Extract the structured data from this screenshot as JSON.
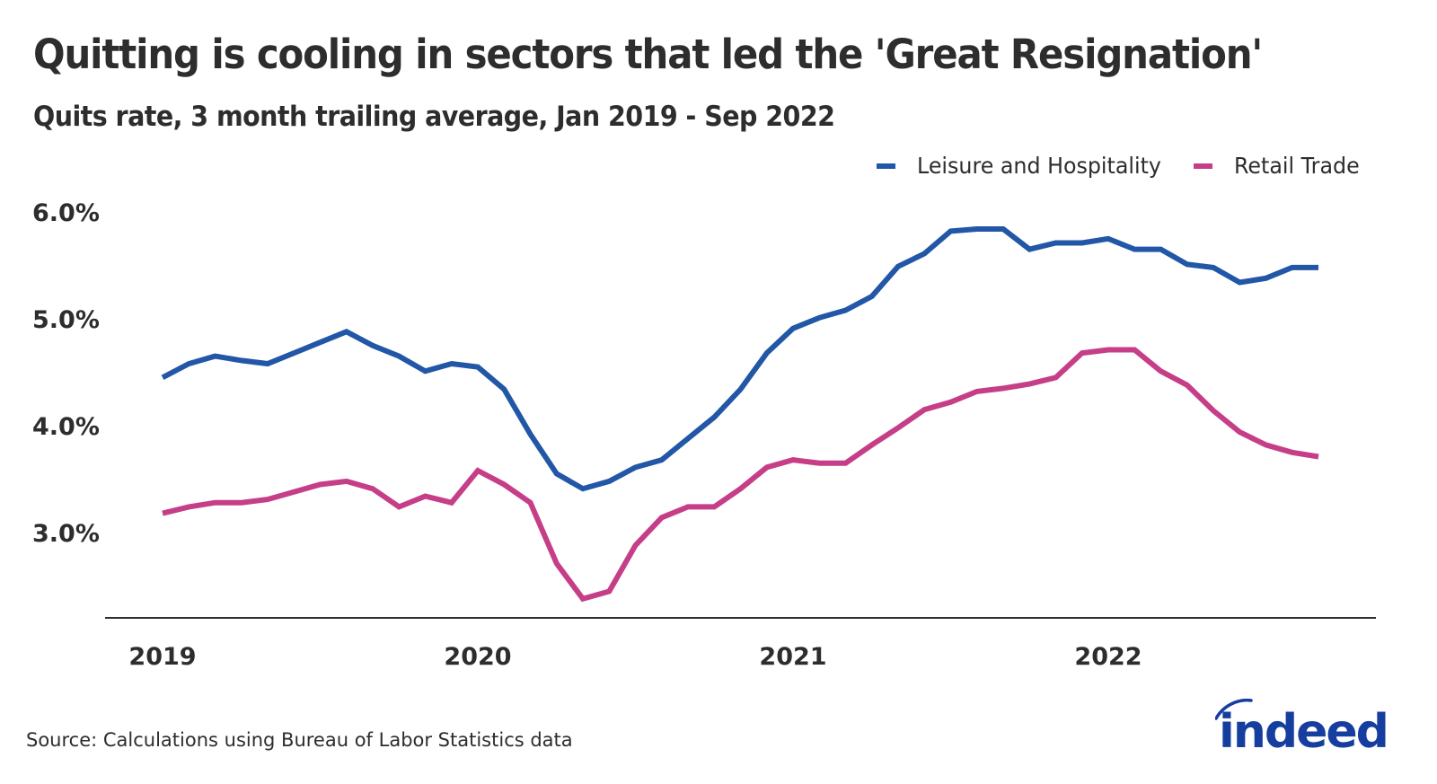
{
  "title": "Quitting is cooling in sectors that led the 'Great Resignation'",
  "subtitle": "Quits rate, 3 month trailing average, Jan 2019 - Sep 2022",
  "source": "Source: Calculations using Bureau of Labor Statistics data",
  "logo": {
    "text": "indeed",
    "color": "#163e9f"
  },
  "colors": {
    "leisure": "#2157a6",
    "retail": "#c53e87",
    "text": "#2d2d2d",
    "axis": "#2d2d2d"
  },
  "chart_data": {
    "type": "line",
    "title": "Quitting is cooling in sectors that led the 'Great Resignation'",
    "subtitle": "Quits rate, 3 month trailing average, Jan 2019 - Sep 2022",
    "xlabel": "",
    "ylabel": "",
    "x_start": "2019-01",
    "x_end": "2022-09",
    "x_frequency": "monthly",
    "x_ticks": [
      "2019",
      "2020",
      "2021",
      "2022"
    ],
    "y_ticks": [
      "3.0%",
      "4.0%",
      "5.0%",
      "6.0%"
    ],
    "y_tick_values": [
      3.0,
      4.0,
      5.0,
      6.0
    ],
    "ylim": [
      2.2,
      6.2
    ],
    "grid": false,
    "legend_position": "top-right",
    "x": [
      "2019-01",
      "2019-02",
      "2019-03",
      "2019-04",
      "2019-05",
      "2019-06",
      "2019-07",
      "2019-08",
      "2019-09",
      "2019-10",
      "2019-11",
      "2019-12",
      "2020-01",
      "2020-02",
      "2020-03",
      "2020-04",
      "2020-05",
      "2020-06",
      "2020-07",
      "2020-08",
      "2020-09",
      "2020-10",
      "2020-11",
      "2020-12",
      "2021-01",
      "2021-02",
      "2021-03",
      "2021-04",
      "2021-05",
      "2021-06",
      "2021-07",
      "2021-08",
      "2021-09",
      "2021-10",
      "2021-11",
      "2021-12",
      "2022-01",
      "2022-02",
      "2022-03",
      "2022-04",
      "2022-05",
      "2022-06",
      "2022-07",
      "2022-08",
      "2022-09"
    ],
    "series": [
      {
        "name": "Leisure and Hospitality",
        "color": "#2157a6",
        "values": [
          4.45,
          4.58,
          4.65,
          4.61,
          4.58,
          4.68,
          4.78,
          4.88,
          4.75,
          4.65,
          4.51,
          4.58,
          4.55,
          4.34,
          3.92,
          3.55,
          3.41,
          3.48,
          3.61,
          3.68,
          3.88,
          4.08,
          4.34,
          4.68,
          4.91,
          5.01,
          5.08,
          5.21,
          5.49,
          5.61,
          5.82,
          5.84,
          5.84,
          5.65,
          5.71,
          5.71,
          5.75,
          5.65,
          5.65,
          5.51,
          5.48,
          5.34,
          5.38,
          5.48,
          5.48
        ]
      },
      {
        "name": "Retail Trade",
        "color": "#c53e87",
        "values": [
          3.18,
          3.24,
          3.28,
          3.28,
          3.31,
          3.38,
          3.45,
          3.48,
          3.41,
          3.24,
          3.34,
          3.28,
          3.58,
          3.45,
          3.28,
          2.71,
          2.38,
          2.45,
          2.88,
          3.14,
          3.24,
          3.24,
          3.41,
          3.61,
          3.68,
          3.65,
          3.65,
          3.82,
          3.98,
          4.15,
          4.22,
          4.32,
          4.35,
          4.39,
          4.45,
          4.68,
          4.71,
          4.71,
          4.51,
          4.38,
          4.14,
          3.94,
          3.82,
          3.75,
          3.71
        ]
      }
    ]
  }
}
